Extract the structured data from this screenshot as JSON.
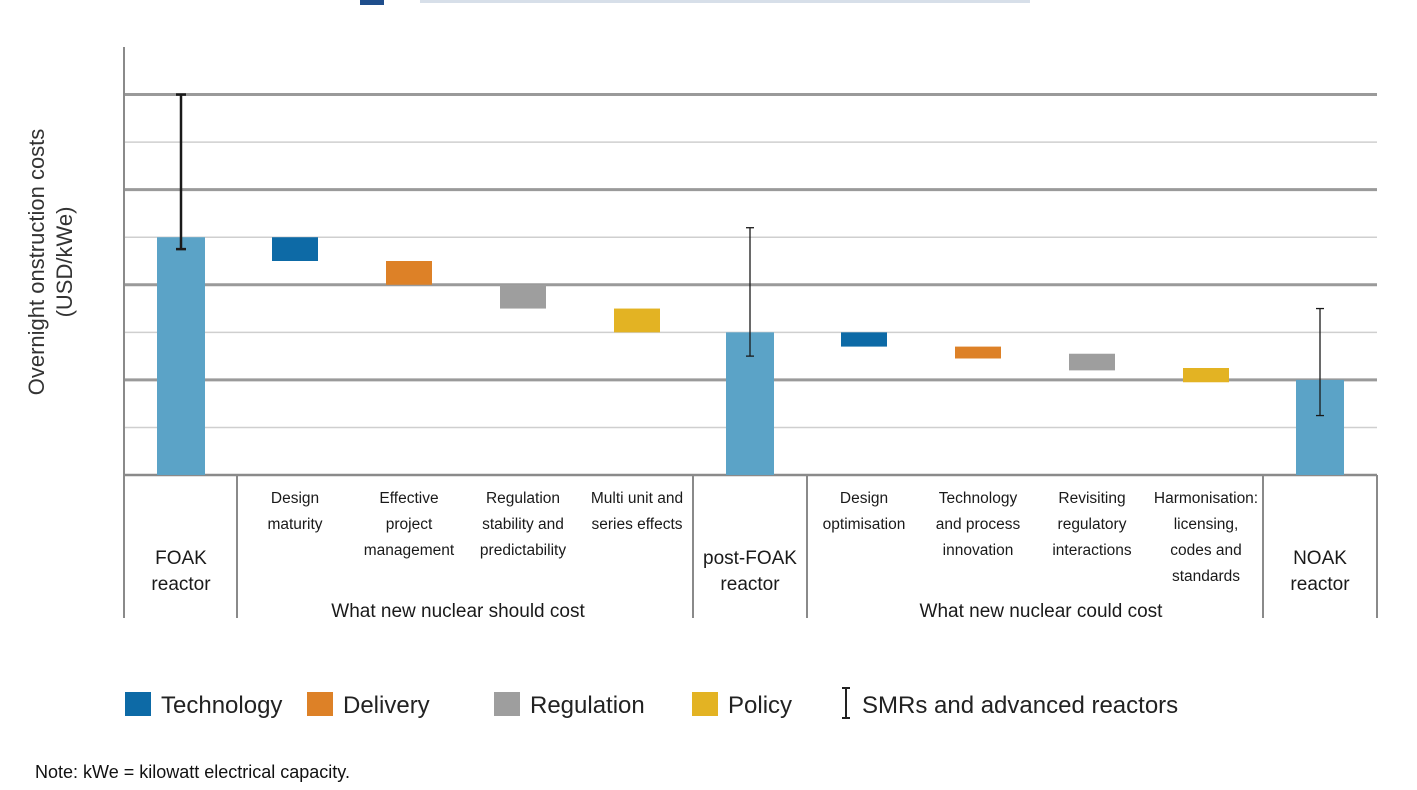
{
  "chart_data": {
    "type": "bar",
    "subtype": "waterfall",
    "ylabel": [
      "Overnight onstruction costs",
      "(USD/kWe)"
    ],
    "ylim": [
      0,
      9
    ],
    "grid": true,
    "categories": [
      {
        "id": "foak",
        "label": [
          "FOAK",
          "reactor"
        ],
        "kind": "total",
        "value": 5,
        "error": [
          4.75,
          8
        ],
        "color": "#5ba3c7"
      },
      {
        "id": "design-maturity",
        "label": [
          "Design",
          "maturity"
        ],
        "kind": "step",
        "from": 5,
        "to": 4.5,
        "series": "Technology",
        "color": "#0d6aa6"
      },
      {
        "id": "effective-project-management",
        "label": [
          "Effective",
          "project",
          "management"
        ],
        "kind": "step",
        "from": 4.5,
        "to": 4,
        "series": "Delivery",
        "color": "#dd8127"
      },
      {
        "id": "regulation-stability",
        "label": [
          "Regulation",
          "stability and",
          "predictability"
        ],
        "kind": "step",
        "from": 4,
        "to": 3.5,
        "series": "Regulation",
        "color": "#9e9e9e"
      },
      {
        "id": "multi-unit",
        "label": [
          "Multi unit  and",
          "series effects"
        ],
        "kind": "step",
        "from": 3.5,
        "to": 3,
        "series": "Policy",
        "color": "#e3b323"
      },
      {
        "id": "post-foak",
        "label": [
          "post-FOAK",
          "reactor"
        ],
        "kind": "total",
        "value": 3,
        "error": [
          2.5,
          5.2
        ],
        "color": "#5ba3c7"
      },
      {
        "id": "design-optimisation",
        "label": [
          "Design",
          "optimisation"
        ],
        "kind": "step",
        "from": 3,
        "to": 2.7,
        "series": "Technology",
        "color": "#0d6aa6"
      },
      {
        "id": "technology-process-innovation",
        "label": [
          "Technology",
          "and process",
          "innovation"
        ],
        "kind": "step",
        "from": 2.7,
        "to": 2.45,
        "series": "Delivery",
        "color": "#dd8127"
      },
      {
        "id": "revisiting-regulatory",
        "label": [
          "Revisiting",
          "regulatory",
          "interactions"
        ],
        "kind": "step",
        "from": 2.55,
        "to": 2.2,
        "series": "Regulation",
        "color": "#9e9e9e"
      },
      {
        "id": "harmonisation",
        "label": [
          "Harmonisation:",
          "licensing,",
          "codes and",
          "standards"
        ],
        "kind": "step",
        "from": 2.25,
        "to": 1.95,
        "series": "Policy",
        "color": "#e3b323"
      },
      {
        "id": "noak",
        "label": [
          "NOAK",
          "reactor"
        ],
        "kind": "total",
        "value": 2,
        "error": [
          1.25,
          3.5
        ],
        "color": "#5ba3c7"
      }
    ],
    "groups": [
      {
        "label": "What new nuclear should cost"
      },
      {
        "label": "What new nuclear could cost"
      }
    ],
    "legend": {
      "placement": "bottom",
      "entries": [
        {
          "label": "Technology",
          "color": "#0d6aa6",
          "marker": "square"
        },
        {
          "label": "Delivery",
          "color": "#dd8127",
          "marker": "square"
        },
        {
          "label": "Regulation",
          "color": "#9e9e9e",
          "marker": "square"
        },
        {
          "label": "Policy",
          "color": "#e3b323",
          "marker": "square"
        },
        {
          "label": "SMRs and advanced reactors",
          "color": "#222222",
          "marker": "error-bar"
        }
      ]
    },
    "note": "Note: kWe = kilowatt electrical capacity."
  }
}
